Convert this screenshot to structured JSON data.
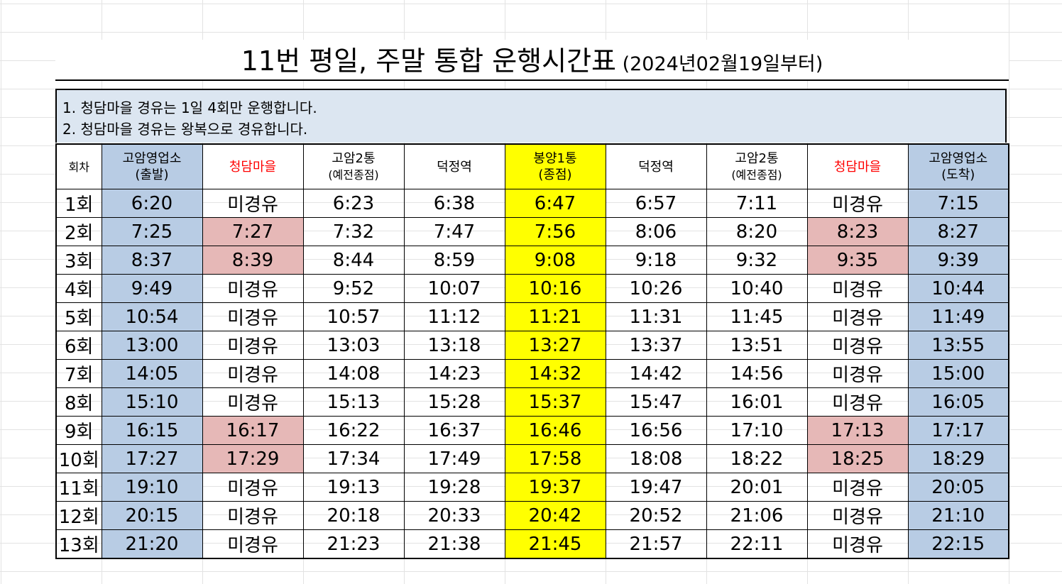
{
  "title": {
    "main": "11번 평일, 주말 통합 운행시간표",
    "sub": " (2024년02월19일부터)"
  },
  "notes": [
    "1. 청담마을 경유는 1일 4회만 운행합니다.",
    "2. 청담마을 경유는 왕복으로 경유합니다."
  ],
  "columns": [
    {
      "main": "회차",
      "sub": ""
    },
    {
      "main": "고암영업소",
      "sub": "(출발)"
    },
    {
      "main": "청담마을",
      "sub": ""
    },
    {
      "main": "고암2통",
      "sub": "(예전종점)"
    },
    {
      "main": "덕정역",
      "sub": ""
    },
    {
      "main": "봉양1통",
      "sub": "(종점)"
    },
    {
      "main": "덕정역",
      "sub": ""
    },
    {
      "main": "고암2통",
      "sub": "(예전종점)"
    },
    {
      "main": "청담마을",
      "sub": ""
    },
    {
      "main": "고암영업소",
      "sub": "(도착)"
    }
  ],
  "rows": [
    [
      "1회",
      "6:20",
      "미경유",
      "6:23",
      "6:38",
      "6:47",
      "6:57",
      "7:11",
      "미경유",
      "7:15"
    ],
    [
      "2회",
      "7:25",
      "7:27",
      "7:32",
      "7:47",
      "7:56",
      "8:06",
      "8:20",
      "8:23",
      "8:27"
    ],
    [
      "3회",
      "8:37",
      "8:39",
      "8:44",
      "8:59",
      "9:08",
      "9:18",
      "9:32",
      "9:35",
      "9:39"
    ],
    [
      "4회",
      "9:49",
      "미경유",
      "9:52",
      "10:07",
      "10:16",
      "10:26",
      "10:40",
      "미경유",
      "10:44"
    ],
    [
      "5회",
      "10:54",
      "미경유",
      "10:57",
      "11:12",
      "11:21",
      "11:31",
      "11:45",
      "미경유",
      "11:49"
    ],
    [
      "6회",
      "13:00",
      "미경유",
      "13:03",
      "13:18",
      "13:27",
      "13:37",
      "13:51",
      "미경유",
      "13:55"
    ],
    [
      "7회",
      "14:05",
      "미경유",
      "14:08",
      "14:23",
      "14:32",
      "14:42",
      "14:56",
      "미경유",
      "15:00"
    ],
    [
      "8회",
      "15:10",
      "미경유",
      "15:13",
      "15:28",
      "15:37",
      "15:47",
      "16:01",
      "미경유",
      "16:05"
    ],
    [
      "9회",
      "16:15",
      "16:17",
      "16:22",
      "16:37",
      "16:46",
      "16:56",
      "17:10",
      "17:13",
      "17:17"
    ],
    [
      "10회",
      "17:27",
      "17:29",
      "17:34",
      "17:49",
      "17:58",
      "18:08",
      "18:22",
      "18:25",
      "18:29"
    ],
    [
      "11회",
      "19:10",
      "미경유",
      "19:13",
      "19:28",
      "19:37",
      "19:47",
      "20:01",
      "미경유",
      "20:05"
    ],
    [
      "12회",
      "20:15",
      "미경유",
      "20:18",
      "20:33",
      "20:42",
      "20:52",
      "21:06",
      "미경유",
      "21:10"
    ],
    [
      "13회",
      "21:20",
      "미경유",
      "21:23",
      "21:38",
      "21:45",
      "21:57",
      "22:11",
      "미경유",
      "22:15"
    ]
  ],
  "colors": {
    "terminal_blue": "#b8cce4",
    "endpoint_yellow": "#ffff00",
    "via_pink": "#e6b8b7",
    "header_red": "#ff0000",
    "notes_bg": "#dce6f1"
  }
}
